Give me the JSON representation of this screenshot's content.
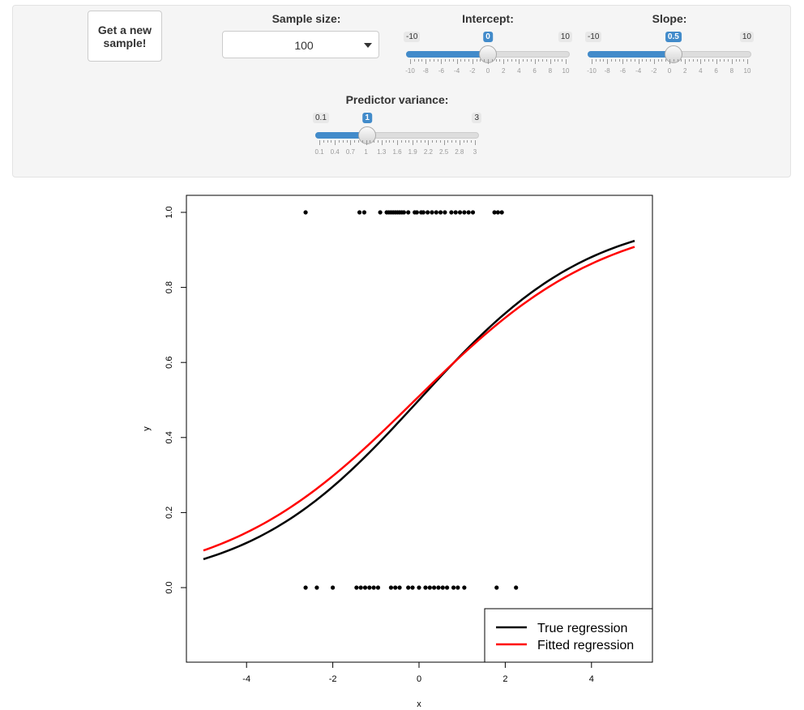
{
  "controls": {
    "new_sample_label": "Get a new sample!",
    "sample_size": {
      "label": "Sample size:",
      "value": "100"
    },
    "intercept": {
      "label": "Intercept:",
      "min_label": "-10",
      "max_label": "10",
      "value_label": "0",
      "min": -10,
      "max": 10,
      "value": 0,
      "ticks": [
        "-10",
        "-8",
        "-6",
        "-4",
        "-2",
        "0",
        "2",
        "4",
        "6",
        "8",
        "10"
      ]
    },
    "slope": {
      "label": "Slope:",
      "min_label": "-10",
      "max_label": "10",
      "value_label": "0.5",
      "min": -10,
      "max": 10,
      "value": 0.5,
      "ticks": [
        "-10",
        "-8",
        "-6",
        "-4",
        "-2",
        "0",
        "2",
        "4",
        "6",
        "8",
        "10"
      ]
    },
    "variance": {
      "label": "Predictor variance:",
      "min_label": "0.1",
      "max_label": "3",
      "value_label": "1",
      "min": 0.1,
      "max": 3,
      "value": 1,
      "ticks": [
        "0.1",
        "0.4",
        "0.7",
        "1",
        "1.3",
        "1.6",
        "1.9",
        "2.2",
        "2.5",
        "2.8",
        "3"
      ]
    }
  },
  "chart_data": {
    "type": "scatter",
    "xlabel": "x",
    "ylabel": "y",
    "xlim": [
      -5.4,
      5.4
    ],
    "ylim": [
      -0.2,
      1.05
    ],
    "xticks": [
      "-4",
      "-2",
      "0",
      "2",
      "4"
    ],
    "yticks": [
      "0.0",
      "0.2",
      "0.4",
      "0.6",
      "0.8",
      "1.0"
    ],
    "points_y1": [
      -2.63,
      -1.38,
      -1.27,
      -0.9,
      -0.75,
      -0.7,
      -0.65,
      -0.6,
      -0.55,
      -0.5,
      -0.45,
      -0.4,
      -0.35,
      -0.25,
      -0.1,
      -0.05,
      0.05,
      0.1,
      0.2,
      0.3,
      0.4,
      0.5,
      0.6,
      0.75,
      0.85,
      0.95,
      1.05,
      1.15,
      1.25,
      1.75,
      1.83,
      1.92
    ],
    "points_y0": [
      -2.63,
      -2.37,
      -2.0,
      -1.45,
      -1.35,
      -1.25,
      -1.15,
      -1.05,
      -0.95,
      -0.65,
      -0.55,
      -0.45,
      -0.25,
      -0.15,
      0.0,
      0.15,
      0.25,
      0.35,
      0.45,
      0.55,
      0.65,
      0.8,
      0.9,
      1.05,
      1.8,
      2.25
    ],
    "series": [
      {
        "name": "True regression",
        "color": "#000000",
        "intercept": 0,
        "slope": 0.5
      },
      {
        "name": "Fitted regression",
        "color": "#ff0000",
        "intercept": 0.04,
        "slope": 0.45
      }
    ],
    "legend_position": "bottom-right"
  }
}
